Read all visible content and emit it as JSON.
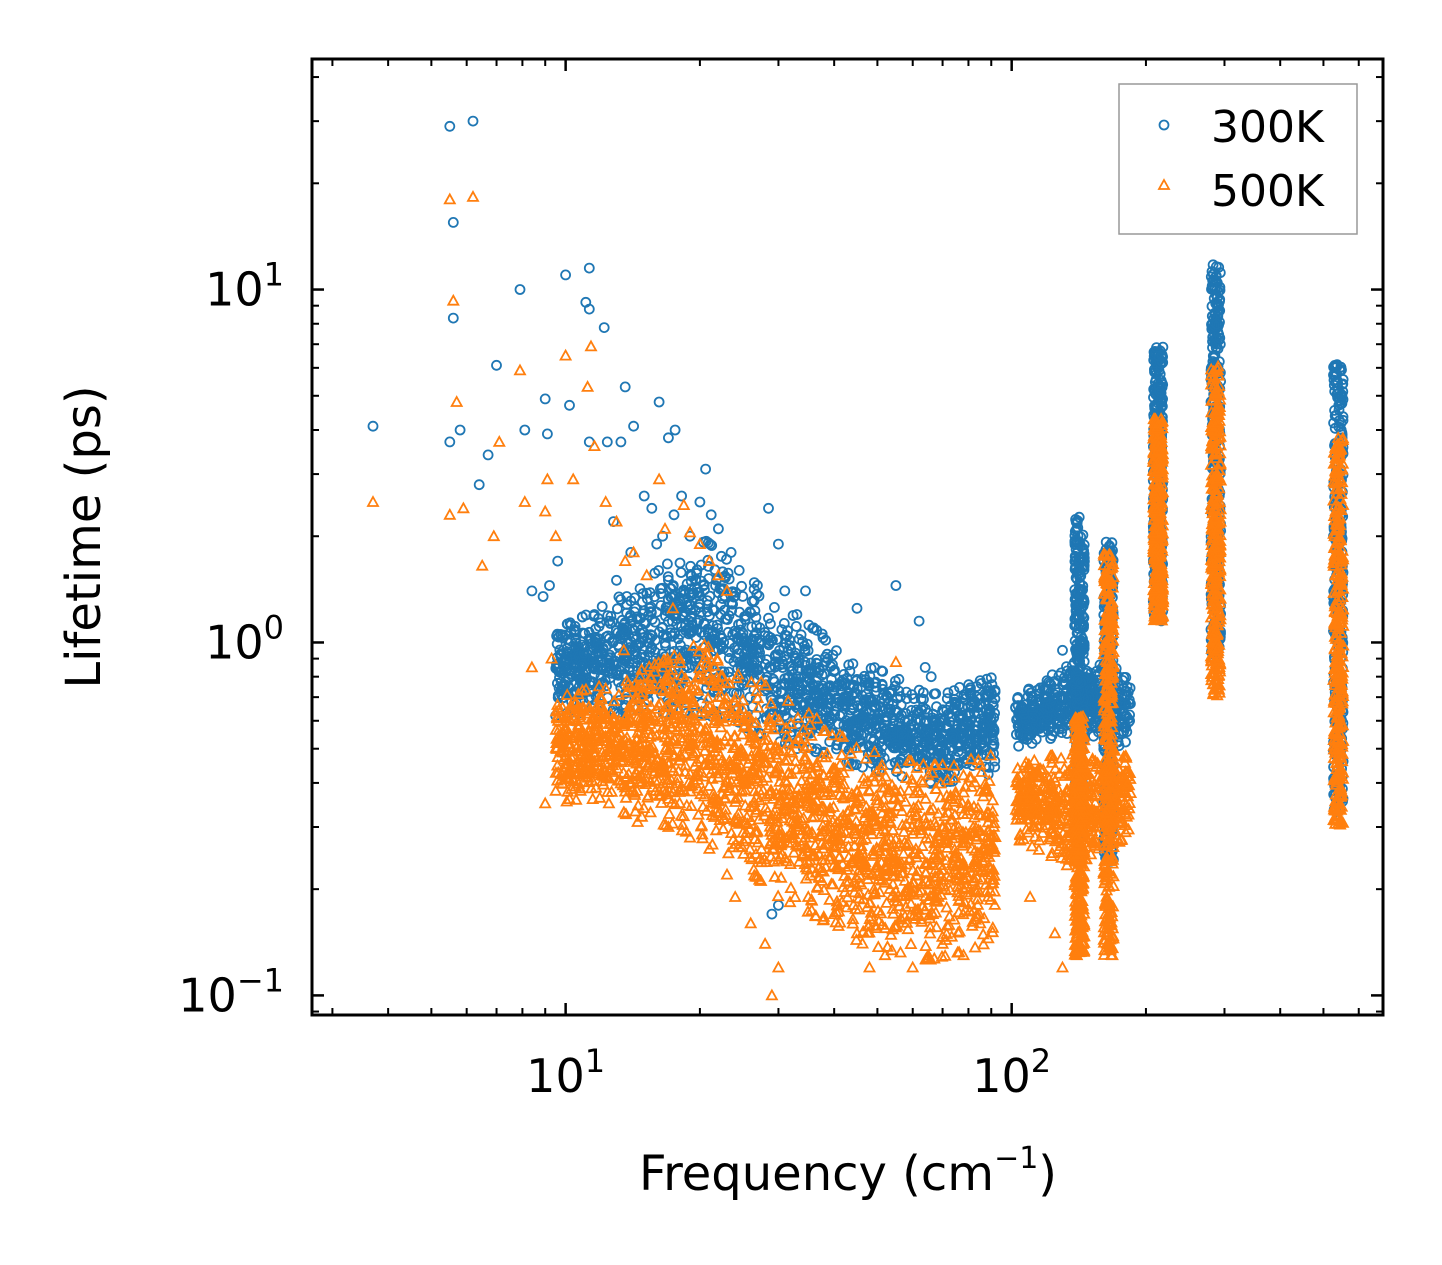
{
  "chart_data": {
    "type": "scatter",
    "xscale": "log",
    "yscale": "log",
    "xlim": [
      2.7,
      680
    ],
    "ylim": [
      0.088,
      45
    ],
    "xlabel": "Frequency (cm",
    "xlabel_sup": "−1",
    "xlabel_end": ")",
    "ylabel": "Lifetime (ps)",
    "x_ticks": [
      {
        "value": 10,
        "base": "10",
        "exp": "1"
      },
      {
        "value": 100,
        "base": "10",
        "exp": "2"
      }
    ],
    "y_ticks": [
      {
        "value": 0.1,
        "base": "10",
        "exp": "−1"
      },
      {
        "value": 1,
        "base": "10",
        "exp": "0"
      },
      {
        "value": 10,
        "base": "10",
        "exp": "1"
      }
    ],
    "legend": {
      "location": "upper right"
    },
    "series": [
      {
        "name": "300K",
        "marker": "circle",
        "color": "#1f77b4",
        "points": [
          [
            3.7,
            4.1
          ],
          [
            5.5,
            29
          ],
          [
            6.2,
            30
          ],
          [
            5.6,
            15.5
          ],
          [
            5.6,
            8.3
          ],
          [
            5.5,
            3.7
          ],
          [
            5.8,
            4.0
          ],
          [
            6.4,
            2.8
          ],
          [
            6.7,
            3.4
          ],
          [
            7.0,
            6.1
          ],
          [
            7.9,
            10.0
          ],
          [
            8.1,
            4.0
          ],
          [
            8.4,
            1.4
          ],
          [
            8.9,
            1.35
          ],
          [
            9.1,
            3.9
          ],
          [
            9.0,
            4.9
          ],
          [
            9.2,
            1.45
          ],
          [
            9.6,
            1.7
          ],
          [
            10.0,
            11.0
          ],
          [
            10.2,
            4.7
          ],
          [
            10.6,
            0.65
          ],
          [
            11.3,
            11.5
          ],
          [
            11.1,
            9.2
          ],
          [
            11.3,
            8.8
          ],
          [
            12.2,
            7.8
          ],
          [
            11.3,
            3.7
          ],
          [
            12.4,
            3.7
          ],
          [
            13.3,
            3.7
          ],
          [
            13.6,
            5.3
          ],
          [
            14.2,
            4.1
          ],
          [
            16.2,
            4.8
          ],
          [
            17.0,
            3.8
          ],
          [
            17.6,
            4.0
          ],
          [
            9.5,
            0.62
          ],
          [
            10.0,
            1.05
          ],
          [
            10.4,
            0.6
          ],
          [
            10.8,
            0.65
          ],
          [
            11.6,
            1.2
          ],
          [
            11.5,
            0.9
          ],
          [
            12.5,
            1.15
          ],
          [
            12.0,
            0.8
          ],
          [
            12.8,
            2.2
          ],
          [
            13.0,
            1.5
          ],
          [
            14.0,
            1.8
          ],
          [
            15.0,
            2.6
          ],
          [
            15.6,
            2.4
          ],
          [
            16.0,
            1.9
          ],
          [
            16.5,
            2.0
          ],
          [
            17.5,
            2.3
          ],
          [
            18.2,
            2.6
          ],
          [
            19.0,
            2.0
          ],
          [
            20.0,
            2.5
          ],
          [
            20.6,
            3.1
          ],
          [
            21.2,
            2.3
          ],
          [
            22.0,
            2.1
          ],
          [
            23.5,
            1.8
          ],
          [
            24.5,
            1.6
          ],
          [
            28.5,
            2.4
          ],
          [
            30.0,
            1.9
          ],
          [
            31.0,
            1.4
          ],
          [
            33.0,
            1.2
          ],
          [
            34.5,
            1.4
          ],
          [
            36.0,
            1.1
          ],
          [
            45.0,
            1.25
          ],
          [
            55.0,
            1.45
          ],
          [
            62.0,
            1.15
          ],
          [
            64.0,
            0.85
          ],
          [
            66.0,
            0.8
          ],
          [
            72.0,
            0.72
          ],
          [
            78.0,
            0.7
          ],
          [
            85.0,
            0.78
          ],
          [
            88.0,
            0.75
          ],
          [
            90.0,
            0.72
          ],
          [
            120.0,
            0.78
          ],
          [
            130.0,
            0.95
          ],
          [
            135.0,
            0.82
          ],
          [
            29.0,
            0.17
          ],
          [
            30.0,
            0.18
          ],
          [
            33.0,
            0.5
          ],
          [
            40.0,
            0.55
          ],
          [
            50.0,
            0.5
          ],
          [
            60.0,
            0.55
          ],
          [
            70.0,
            0.6
          ],
          [
            80.0,
            0.62
          ]
        ]
      },
      {
        "name": "500K",
        "marker": "triangle",
        "color": "#ff7f0e",
        "points": [
          [
            3.7,
            2.5
          ],
          [
            5.5,
            18
          ],
          [
            6.2,
            18.3
          ],
          [
            5.6,
            9.3
          ],
          [
            5.7,
            4.8
          ],
          [
            5.5,
            2.3
          ],
          [
            5.9,
            2.4
          ],
          [
            6.5,
            1.65
          ],
          [
            6.9,
            2.0
          ],
          [
            7.1,
            3.7
          ],
          [
            7.9,
            5.9
          ],
          [
            8.1,
            2.5
          ],
          [
            8.4,
            0.85
          ],
          [
            9.0,
            2.35
          ],
          [
            9.1,
            2.9
          ],
          [
            9.3,
            0.9
          ],
          [
            9.5,
            2.0
          ],
          [
            10.0,
            6.5
          ],
          [
            10.4,
            2.9
          ],
          [
            10.6,
            0.65
          ],
          [
            11.2,
            5.3
          ],
          [
            11.4,
            6.9
          ],
          [
            11.6,
            3.6
          ],
          [
            12.3,
            2.5
          ],
          [
            13.0,
            2.2
          ],
          [
            13.6,
            1.7
          ],
          [
            14.2,
            1.8
          ],
          [
            15.2,
            1.55
          ],
          [
            16.2,
            2.9
          ],
          [
            16.7,
            2.1
          ],
          [
            17.4,
            1.25
          ],
          [
            18.4,
            2.45
          ],
          [
            19.0,
            2.05
          ],
          [
            20.0,
            1.9
          ],
          [
            21.0,
            1.7
          ],
          [
            22.0,
            1.55
          ],
          [
            23.0,
            1.4
          ],
          [
            9.0,
            0.35
          ],
          [
            9.5,
            0.38
          ],
          [
            10.2,
            0.36
          ],
          [
            10.8,
            0.38
          ],
          [
            11.5,
            0.36
          ],
          [
            12.5,
            0.35
          ],
          [
            13.5,
            0.33
          ],
          [
            14.5,
            0.31
          ],
          [
            15.5,
            0.33
          ],
          [
            17.0,
            0.3
          ],
          [
            19.0,
            0.28
          ],
          [
            21.0,
            0.26
          ],
          [
            23.0,
            0.22
          ],
          [
            24.0,
            0.19
          ],
          [
            26.0,
            0.16
          ],
          [
            28.0,
            0.14
          ],
          [
            29.0,
            0.1
          ],
          [
            30.0,
            0.12
          ],
          [
            35.0,
            0.19
          ],
          [
            40.0,
            0.17
          ],
          [
            45.0,
            0.15
          ],
          [
            48.0,
            0.12
          ],
          [
            52.0,
            0.13
          ],
          [
            55.0,
            0.88
          ],
          [
            60.0,
            0.12
          ],
          [
            65.0,
            0.13
          ],
          [
            70.0,
            0.14
          ],
          [
            78.0,
            0.13
          ],
          [
            85.0,
            0.16
          ],
          [
            90.0,
            0.22
          ],
          [
            110.0,
            0.19
          ],
          [
            125.0,
            0.15
          ],
          [
            130.0,
            0.12
          ],
          [
            140.0,
            0.13
          ],
          [
            165.0,
            0.16
          ],
          [
            180.0,
            0.29
          ],
          [
            10.0,
            0.6
          ],
          [
            10.5,
            0.45
          ],
          [
            11.2,
            0.5
          ],
          [
            12.0,
            0.7
          ],
          [
            12.8,
            0.6
          ],
          [
            13.5,
            0.95
          ],
          [
            14.5,
            0.75
          ],
          [
            15.5,
            0.8
          ],
          [
            16.5,
            0.85
          ],
          [
            18.0,
            0.9
          ],
          [
            20.0,
            0.8
          ],
          [
            22.0,
            0.7
          ],
          [
            24.0,
            0.6
          ],
          [
            26.0,
            0.55
          ],
          [
            30.0,
            0.5
          ],
          [
            35.0,
            0.45
          ],
          [
            40.0,
            0.4
          ],
          [
            45.0,
            0.38
          ],
          [
            50.0,
            0.35
          ],
          [
            55.0,
            0.38
          ],
          [
            60.0,
            0.4
          ],
          [
            65.0,
            0.42
          ],
          [
            70.0,
            0.45
          ],
          [
            78.0,
            0.42
          ],
          [
            85.0,
            0.45
          ]
        ]
      }
    ],
    "x_clusters": [
      [
        142,
        0.28,
        2.3,
        0.13,
        0.62
      ],
      [
        165,
        0.24,
        1.95,
        0.13,
        1.8
      ],
      [
        213,
        1.15,
        7.0,
        1.15,
        4.3
      ],
      [
        287,
        0.9,
        11.8,
        0.68,
        6.1
      ],
      [
        540,
        0.33,
        6.2,
        0.3,
        3.8
      ]
    ]
  },
  "style": {
    "color_300K": "#1f77b4",
    "color_500K": "#ff7f0e"
  }
}
